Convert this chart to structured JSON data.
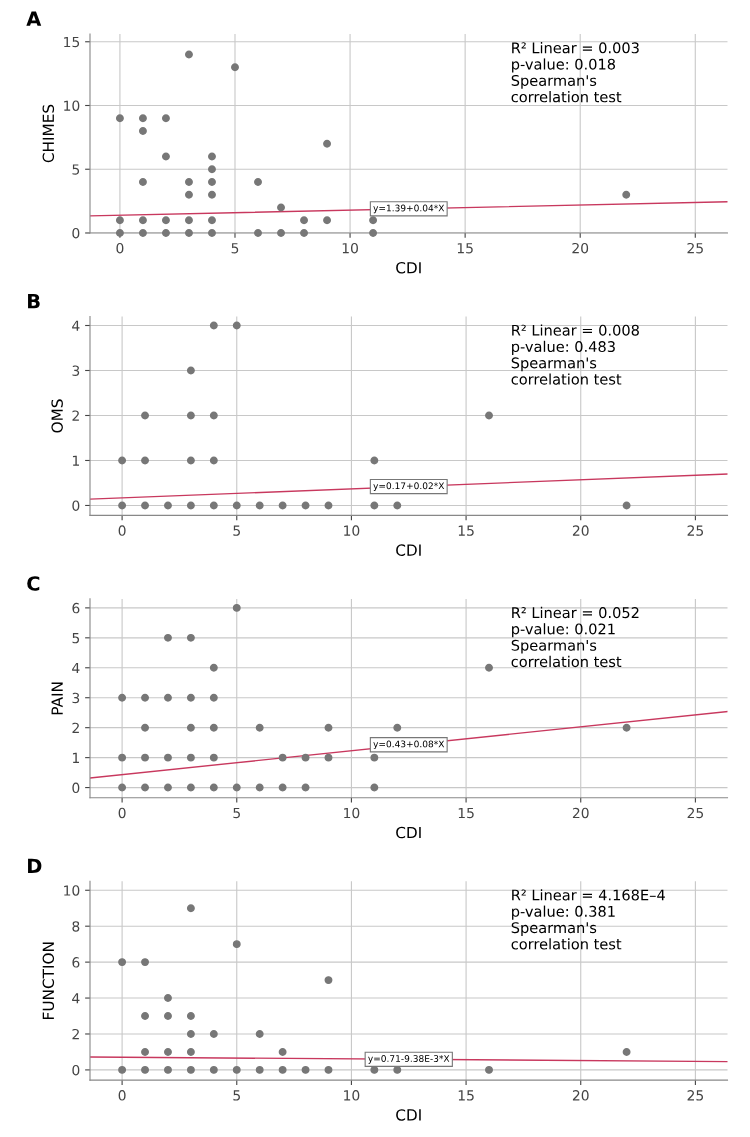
{
  "chart_data": [
    {
      "type": "scatter",
      "title": "A",
      "xlabel": "CDI",
      "ylabel": "CHIMES",
      "xlim": [
        -1.3,
        26.4
      ],
      "ylim": [
        0,
        15.6
      ],
      "xticks": [
        0,
        5,
        10,
        15,
        20,
        25
      ],
      "yticks": [
        0,
        5,
        10,
        15
      ],
      "grid": true,
      "series": [
        {
          "type": "scatter",
          "marker": "circle",
          "color": "#777777",
          "x": [
            0,
            0,
            0,
            1,
            1,
            1,
            1,
            1,
            2,
            2,
            2,
            2,
            3,
            3,
            3,
            3,
            3,
            4,
            4,
            4,
            4,
            4,
            4,
            5,
            6,
            6,
            7,
            7,
            8,
            8,
            9,
            9,
            11,
            11,
            22
          ],
          "values": [
            9,
            1,
            0,
            9,
            8,
            4,
            1,
            0,
            9,
            6,
            1,
            0,
            14,
            4,
            3,
            1,
            0,
            6,
            5,
            4,
            3,
            1,
            0,
            13,
            4,
            0,
            2,
            0,
            1,
            0,
            7,
            1,
            1,
            0,
            3
          ]
        },
        {
          "type": "line",
          "color": "#c8385e",
          "x": [
            -1.3,
            26.4
          ],
          "values": [
            1.34,
            2.45
          ]
        }
      ],
      "annotations": [
        "R² Linear = 0.003",
        "p-value: 0.018",
        "Spearman's\ncorrelation test",
        "y=1.39+0.04*X"
      ]
    },
    {
      "type": "scatter",
      "title": "B",
      "xlabel": "CDI",
      "ylabel": "OMS",
      "xlim": [
        -1.4,
        26.4
      ],
      "ylim": [
        -0.22,
        4.2
      ],
      "xticks": [
        0,
        5,
        10,
        15,
        20,
        25
      ],
      "yticks": [
        0,
        1,
        2,
        3,
        4
      ],
      "grid": true,
      "series": [
        {
          "type": "scatter",
          "marker": "circle",
          "color": "#777777",
          "x": [
            0,
            0,
            1,
            1,
            1,
            2,
            3,
            3,
            3,
            3,
            4,
            4,
            4,
            4,
            5,
            5,
            6,
            7,
            8,
            9,
            11,
            11,
            12,
            16,
            22
          ],
          "values": [
            1,
            0,
            2,
            1,
            0,
            0,
            3,
            2,
            1,
            0,
            4,
            2,
            1,
            0,
            4,
            0,
            0,
            0,
            0,
            0,
            1,
            0,
            0,
            2,
            0
          ]
        },
        {
          "type": "line",
          "color": "#c8385e",
          "x": [
            -1.4,
            26.4
          ],
          "values": [
            0.14,
            0.7
          ]
        }
      ],
      "annotations": [
        "R² Linear = 0.008",
        "p-value: 0.483",
        "Spearman's\ncorrelation test",
        "y=0.17+0.02*X"
      ]
    },
    {
      "type": "scatter",
      "title": "C",
      "xlabel": "CDI",
      "ylabel": "PAIN",
      "xlim": [
        -1.4,
        26.4
      ],
      "ylim": [
        -0.34,
        6.3
      ],
      "xticks": [
        0,
        5,
        10,
        15,
        20,
        25
      ],
      "yticks": [
        0,
        1,
        2,
        3,
        4,
        5,
        6
      ],
      "grid": true,
      "series": [
        {
          "type": "scatter",
          "marker": "circle",
          "color": "#777777",
          "x": [
            0,
            0,
            0,
            1,
            1,
            1,
            1,
            2,
            2,
            2,
            2,
            3,
            3,
            3,
            3,
            3,
            4,
            4,
            4,
            4,
            4,
            5,
            5,
            6,
            6,
            7,
            7,
            8,
            8,
            9,
            9,
            11,
            11,
            12,
            16,
            22
          ],
          "values": [
            3,
            1,
            0,
            3,
            2,
            1,
            0,
            5,
            3,
            1,
            0,
            5,
            3,
            2,
            1,
            0,
            4,
            3,
            2,
            1,
            0,
            6,
            0,
            2,
            0,
            1,
            0,
            1,
            0,
            2,
            1,
            1,
            0,
            2,
            4,
            2
          ]
        },
        {
          "type": "line",
          "color": "#c8385e",
          "x": [
            -1.4,
            26.4
          ],
          "values": [
            0.32,
            2.54
          ]
        }
      ],
      "annotations": [
        "R² Linear = 0.052",
        "p-value: 0.021",
        "Spearman's\ncorrelation test",
        "y=0.43+0.08*X"
      ]
    },
    {
      "type": "scatter",
      "title": "D",
      "xlabel": "CDI",
      "ylabel": "FUNCTION",
      "xlim": [
        -1.4,
        26.4
      ],
      "ylim": [
        -0.57,
        10.5
      ],
      "xticks": [
        0,
        5,
        10,
        15,
        20,
        25
      ],
      "yticks": [
        0,
        2,
        4,
        6,
        8,
        10
      ],
      "grid": true,
      "series": [
        {
          "type": "scatter",
          "marker": "circle",
          "color": "#777777",
          "x": [
            0,
            0,
            1,
            1,
            1,
            1,
            2,
            2,
            2,
            2,
            3,
            3,
            3,
            3,
            3,
            4,
            4,
            5,
            5,
            6,
            6,
            7,
            7,
            8,
            9,
            9,
            11,
            12,
            16,
            22
          ],
          "values": [
            6,
            0,
            6,
            3,
            1,
            0,
            4,
            3,
            1,
            0,
            9,
            3,
            2,
            1,
            0,
            2,
            0,
            7,
            0,
            2,
            0,
            1,
            0,
            0,
            5,
            0,
            0,
            0,
            0,
            1
          ]
        },
        {
          "type": "line",
          "color": "#c8385e",
          "x": [
            -1.4,
            26.4
          ],
          "values": [
            0.72,
            0.46
          ]
        }
      ],
      "annotations": [
        "R² Linear = 4.168E–4",
        "p-value: 0.381",
        "Spearman's\ncorrelation test",
        "y=0.71-9.38E-3*X"
      ]
    }
  ]
}
